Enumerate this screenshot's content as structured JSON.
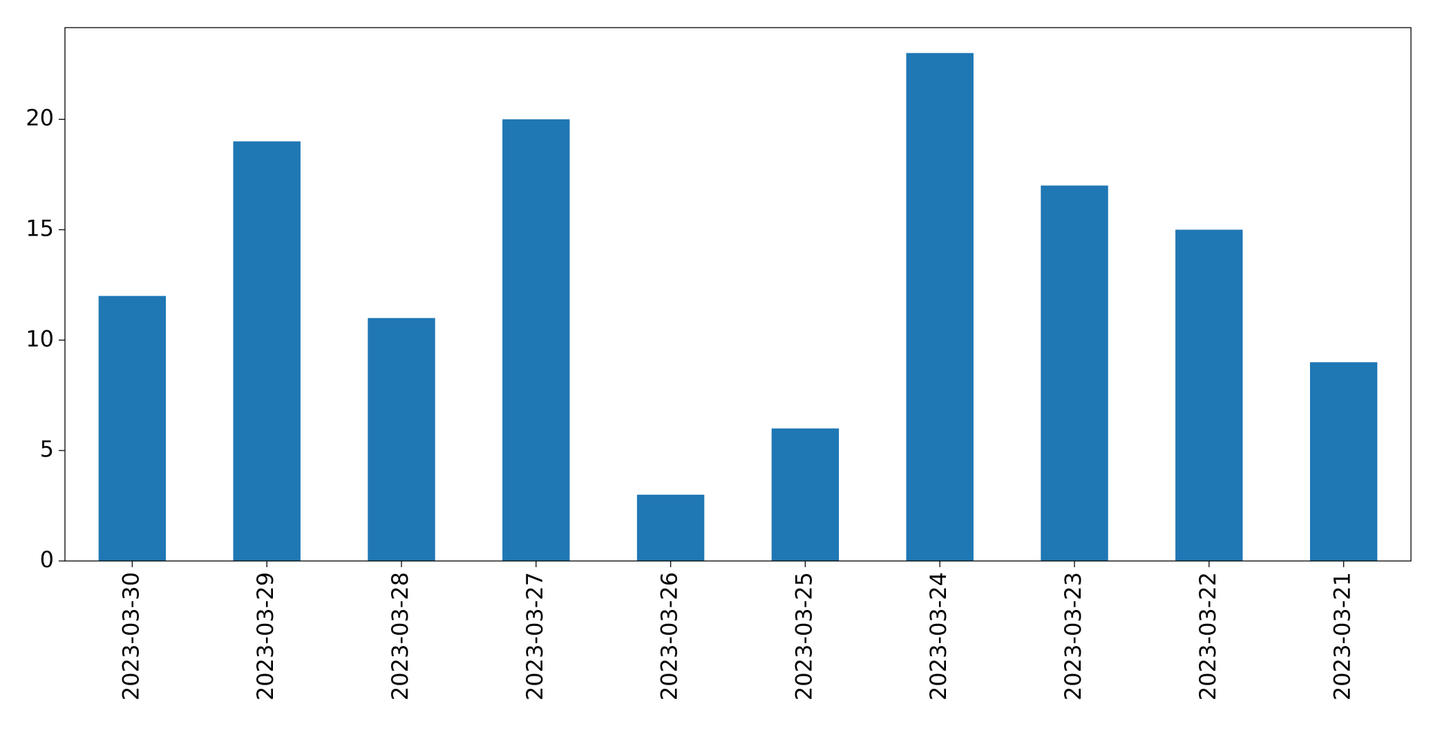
{
  "chart_data": {
    "type": "bar",
    "categories": [
      "2023-03-30",
      "2023-03-29",
      "2023-03-28",
      "2023-03-27",
      "2023-03-26",
      "2023-03-25",
      "2023-03-24",
      "2023-03-23",
      "2023-03-22",
      "2023-03-21"
    ],
    "values": [
      12,
      19,
      11,
      20,
      3,
      6,
      23,
      17,
      15,
      9
    ],
    "color": "#1f77b4",
    "ylim": [
      0,
      24.15
    ],
    "yticks": [
      0,
      5,
      10,
      15,
      20
    ],
    "grid": false
  }
}
